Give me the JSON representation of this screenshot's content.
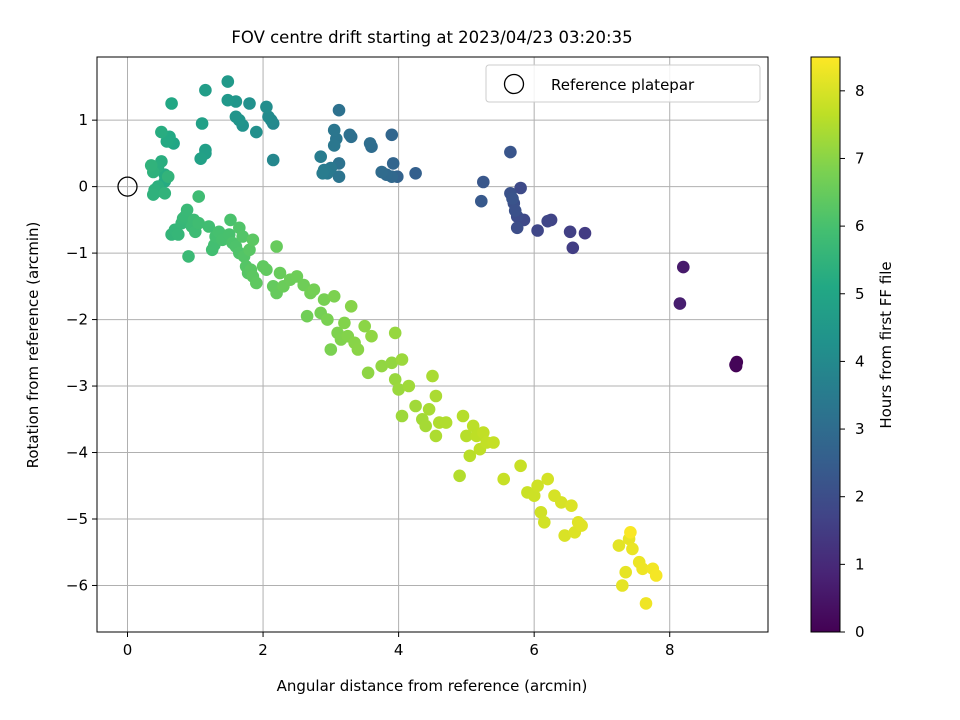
{
  "chart_data": {
    "type": "scatter",
    "title": "FOV centre drift starting at 2023/04/23 03:20:35",
    "xlabel": "Angular distance from reference (arcmin)",
    "ylabel": "Rotation from reference (arcmin)",
    "xlim": [
      -0.45,
      9.45
    ],
    "ylim": [
      -6.7,
      1.95
    ],
    "xticks": [
      0,
      2,
      4,
      6,
      8
    ],
    "yticks": [
      1,
      0,
      -1,
      -2,
      -3,
      -4,
      -5,
      -6
    ],
    "grid": true,
    "legend": {
      "position": "top-right",
      "label": "Reference platepar"
    },
    "reference_point": {
      "x": 0,
      "y": 0
    },
    "colorbar": {
      "label": "Hours from first FF file",
      "range": [
        0,
        8.5
      ],
      "ticks": [
        0,
        1,
        2,
        3,
        4,
        5,
        6,
        7,
        8
      ],
      "colormap": "viridis"
    },
    "points": [
      [
        8.98,
        -2.7,
        0.0
      ],
      [
        8.99,
        -2.64,
        0.05
      ],
      [
        8.97,
        -2.68,
        0.1
      ],
      [
        8.2,
        -1.21,
        0.6
      ],
      [
        8.15,
        -1.76,
        0.7
      ],
      [
        6.75,
        -0.7,
        1.5
      ],
      [
        6.57,
        -0.92,
        1.55
      ],
      [
        6.53,
        -0.68,
        1.6
      ],
      [
        6.25,
        -0.5,
        1.7
      ],
      [
        6.2,
        -0.52,
        1.75
      ],
      [
        6.05,
        -0.66,
        1.8
      ],
      [
        5.85,
        -0.5,
        1.85
      ],
      [
        5.8,
        -0.02,
        1.9
      ],
      [
        5.75,
        -0.45,
        1.95
      ],
      [
        5.75,
        -0.62,
        2.0
      ],
      [
        5.7,
        -0.25,
        2.05
      ],
      [
        5.72,
        -0.36,
        2.1
      ],
      [
        5.65,
        -0.1,
        2.15
      ],
      [
        5.68,
        -0.18,
        2.2
      ],
      [
        5.65,
        0.52,
        2.25
      ],
      [
        5.25,
        0.07,
        2.3
      ],
      [
        5.22,
        -0.22,
        2.35
      ],
      [
        4.25,
        0.2,
        2.6
      ],
      [
        3.98,
        0.15,
        2.7
      ],
      [
        3.92,
        0.35,
        2.75
      ],
      [
        3.9,
        0.78,
        2.8
      ],
      [
        3.9,
        0.15,
        2.85
      ],
      [
        3.82,
        0.18,
        2.9
      ],
      [
        3.75,
        0.22,
        2.95
      ],
      [
        3.6,
        0.6,
        3.0
      ],
      [
        3.58,
        0.65,
        3.05
      ],
      [
        3.3,
        0.75,
        3.1
      ],
      [
        3.28,
        0.78,
        3.12
      ],
      [
        3.12,
        1.15,
        3.15
      ],
      [
        3.12,
        0.35,
        3.2
      ],
      [
        3.12,
        0.15,
        3.25
      ],
      [
        3.08,
        0.72,
        3.3
      ],
      [
        3.05,
        0.85,
        3.32
      ],
      [
        3.05,
        0.62,
        3.35
      ],
      [
        3.0,
        0.28,
        3.4
      ],
      [
        2.95,
        0.2,
        3.45
      ],
      [
        2.9,
        0.25,
        3.5
      ],
      [
        2.88,
        0.2,
        3.52
      ],
      [
        2.85,
        0.45,
        3.55
      ],
      [
        2.15,
        0.4,
        3.9
      ],
      [
        2.15,
        0.95,
        3.95
      ],
      [
        2.12,
        1.0,
        4.0
      ],
      [
        2.08,
        1.05,
        4.05
      ],
      [
        2.05,
        1.2,
        4.1
      ],
      [
        1.9,
        0.82,
        4.2
      ],
      [
        1.8,
        1.25,
        4.25
      ],
      [
        1.7,
        0.92,
        4.3
      ],
      [
        1.65,
        1.0,
        4.35
      ],
      [
        1.6,
        1.05,
        4.4
      ],
      [
        1.6,
        1.28,
        4.45
      ],
      [
        1.48,
        1.3,
        4.5
      ],
      [
        1.48,
        1.58,
        4.55
      ],
      [
        1.15,
        1.45,
        4.7
      ],
      [
        1.15,
        0.5,
        4.75
      ],
      [
        1.15,
        0.55,
        4.78
      ],
      [
        1.1,
        0.95,
        4.8
      ],
      [
        1.08,
        0.42,
        4.85
      ],
      [
        0.68,
        0.65,
        5.0
      ],
      [
        0.65,
        1.25,
        5.05
      ],
      [
        0.62,
        0.68,
        5.1
      ],
      [
        0.62,
        0.75,
        5.12
      ],
      [
        0.58,
        0.68,
        5.15
      ],
      [
        0.55,
        0.08,
        5.2
      ],
      [
        0.55,
        0.18,
        5.22
      ],
      [
        0.5,
        0.82,
        5.25
      ],
      [
        0.5,
        0.38,
        5.3
      ],
      [
        0.45,
        0.3,
        5.32
      ],
      [
        0.45,
        0.0,
        5.35
      ],
      [
        0.42,
        -0.08,
        5.38
      ],
      [
        0.4,
        -0.05,
        5.4
      ],
      [
        0.38,
        0.22,
        5.42
      ],
      [
        0.38,
        -0.12,
        5.45
      ],
      [
        0.35,
        0.32,
        5.48
      ],
      [
        0.55,
        -0.1,
        5.5
      ],
      [
        0.6,
        0.15,
        5.52
      ],
      [
        0.65,
        -0.72,
        5.55
      ],
      [
        0.7,
        -0.65,
        5.58
      ],
      [
        0.75,
        -0.72,
        5.6
      ],
      [
        0.8,
        -0.55,
        5.62
      ],
      [
        0.82,
        -0.48,
        5.65
      ],
      [
        0.85,
        -0.45,
        5.68
      ],
      [
        0.88,
        -0.35,
        5.7
      ],
      [
        0.9,
        -1.05,
        5.72
      ],
      [
        0.95,
        -0.6,
        5.75
      ],
      [
        0.98,
        -0.5,
        5.78
      ],
      [
        1.0,
        -0.68,
        5.8
      ],
      [
        1.05,
        -0.15,
        5.82
      ],
      [
        1.05,
        -0.55,
        5.85
      ],
      [
        1.2,
        -0.6,
        5.88
      ],
      [
        1.25,
        -0.95,
        5.9
      ],
      [
        1.28,
        -0.88,
        5.92
      ],
      [
        1.3,
        -0.75,
        5.95
      ],
      [
        1.35,
        -0.68,
        5.98
      ],
      [
        1.4,
        -0.8,
        6.0
      ],
      [
        1.5,
        -0.72,
        6.02
      ],
      [
        1.52,
        -0.5,
        6.05
      ],
      [
        1.55,
        -0.85,
        6.08
      ],
      [
        1.6,
        -0.9,
        6.1
      ],
      [
        1.65,
        -1.0,
        6.12
      ],
      [
        1.65,
        -0.62,
        6.15
      ],
      [
        1.7,
        -0.75,
        6.18
      ],
      [
        1.72,
        -1.05,
        6.2
      ],
      [
        1.75,
        -1.2,
        6.22
      ],
      [
        1.78,
        -1.3,
        6.25
      ],
      [
        1.8,
        -0.95,
        6.28
      ],
      [
        1.82,
        -1.25,
        6.3
      ],
      [
        1.85,
        -0.8,
        6.32
      ],
      [
        1.85,
        -1.35,
        6.35
      ],
      [
        1.9,
        -1.45,
        6.38
      ],
      [
        2.0,
        -1.2,
        6.4
      ],
      [
        2.05,
        -1.25,
        6.42
      ],
      [
        2.15,
        -1.5,
        6.45
      ],
      [
        2.2,
        -1.6,
        6.48
      ],
      [
        2.2,
        -0.9,
        6.5
      ],
      [
        2.25,
        -1.3,
        6.52
      ],
      [
        2.3,
        -1.5,
        6.55
      ],
      [
        2.4,
        -1.4,
        6.58
      ],
      [
        2.5,
        -1.35,
        6.6
      ],
      [
        2.6,
        -1.48,
        6.62
      ],
      [
        2.65,
        -1.95,
        6.65
      ],
      [
        2.7,
        -1.6,
        6.68
      ],
      [
        2.75,
        -1.55,
        6.7
      ],
      [
        2.85,
        -1.9,
        6.72
      ],
      [
        2.9,
        -1.7,
        6.75
      ],
      [
        2.95,
        -2.0,
        6.78
      ],
      [
        3.0,
        -2.45,
        6.8
      ],
      [
        3.05,
        -1.65,
        6.82
      ],
      [
        3.1,
        -2.2,
        6.85
      ],
      [
        3.15,
        -2.3,
        6.88
      ],
      [
        3.2,
        -2.05,
        6.9
      ],
      [
        3.25,
        -2.25,
        6.92
      ],
      [
        3.3,
        -1.8,
        6.95
      ],
      [
        3.35,
        -2.35,
        6.98
      ],
      [
        3.4,
        -2.45,
        7.0
      ],
      [
        3.5,
        -2.1,
        7.02
      ],
      [
        3.55,
        -2.8,
        7.05
      ],
      [
        3.6,
        -2.25,
        7.08
      ],
      [
        3.75,
        -2.7,
        7.1
      ],
      [
        3.9,
        -2.65,
        7.12
      ],
      [
        3.95,
        -2.2,
        7.15
      ],
      [
        3.95,
        -2.9,
        7.18
      ],
      [
        4.0,
        -3.05,
        7.2
      ],
      [
        4.05,
        -2.6,
        7.22
      ],
      [
        4.05,
        -3.45,
        7.25
      ],
      [
        4.15,
        -3.0,
        7.28
      ],
      [
        4.25,
        -3.3,
        7.3
      ],
      [
        4.35,
        -3.5,
        7.32
      ],
      [
        4.4,
        -3.6,
        7.35
      ],
      [
        4.45,
        -3.35,
        7.38
      ],
      [
        4.5,
        -2.85,
        7.4
      ],
      [
        4.55,
        -3.15,
        7.42
      ],
      [
        4.55,
        -3.75,
        7.45
      ],
      [
        4.6,
        -3.55,
        7.48
      ],
      [
        4.7,
        -3.55,
        7.5
      ],
      [
        4.9,
        -4.35,
        7.52
      ],
      [
        4.95,
        -3.45,
        7.55
      ],
      [
        5.0,
        -3.75,
        7.58
      ],
      [
        5.05,
        -4.05,
        7.6
      ],
      [
        5.1,
        -3.6,
        7.62
      ],
      [
        5.15,
        -3.75,
        7.65
      ],
      [
        5.2,
        -3.95,
        7.68
      ],
      [
        5.25,
        -3.7,
        7.7
      ],
      [
        5.3,
        -3.85,
        7.72
      ],
      [
        5.4,
        -3.85,
        7.75
      ],
      [
        5.55,
        -4.4,
        7.78
      ],
      [
        5.8,
        -4.2,
        7.8
      ],
      [
        5.9,
        -4.6,
        7.82
      ],
      [
        6.0,
        -4.65,
        7.85
      ],
      [
        6.05,
        -4.5,
        7.88
      ],
      [
        6.1,
        -4.9,
        7.9
      ],
      [
        6.15,
        -5.05,
        7.92
      ],
      [
        6.2,
        -4.4,
        7.95
      ],
      [
        6.3,
        -4.65,
        7.98
      ],
      [
        6.4,
        -4.75,
        8.0
      ],
      [
        6.45,
        -5.25,
        8.02
      ],
      [
        6.55,
        -4.8,
        8.05
      ],
      [
        6.6,
        -5.2,
        8.08
      ],
      [
        6.65,
        -5.05,
        8.1
      ],
      [
        6.7,
        -5.1,
        8.12
      ],
      [
        7.25,
        -5.4,
        8.15
      ],
      [
        7.3,
        -6.0,
        8.18
      ],
      [
        7.35,
        -5.8,
        8.2
      ],
      [
        7.4,
        -5.3,
        8.22
      ],
      [
        7.45,
        -5.45,
        8.25
      ],
      [
        7.55,
        -5.65,
        8.28
      ],
      [
        7.6,
        -5.75,
        8.3
      ],
      [
        7.65,
        -6.27,
        8.32
      ],
      [
        7.75,
        -5.75,
        8.35
      ],
      [
        7.8,
        -5.85,
        8.4
      ],
      [
        7.42,
        -5.2,
        8.45
      ]
    ]
  }
}
